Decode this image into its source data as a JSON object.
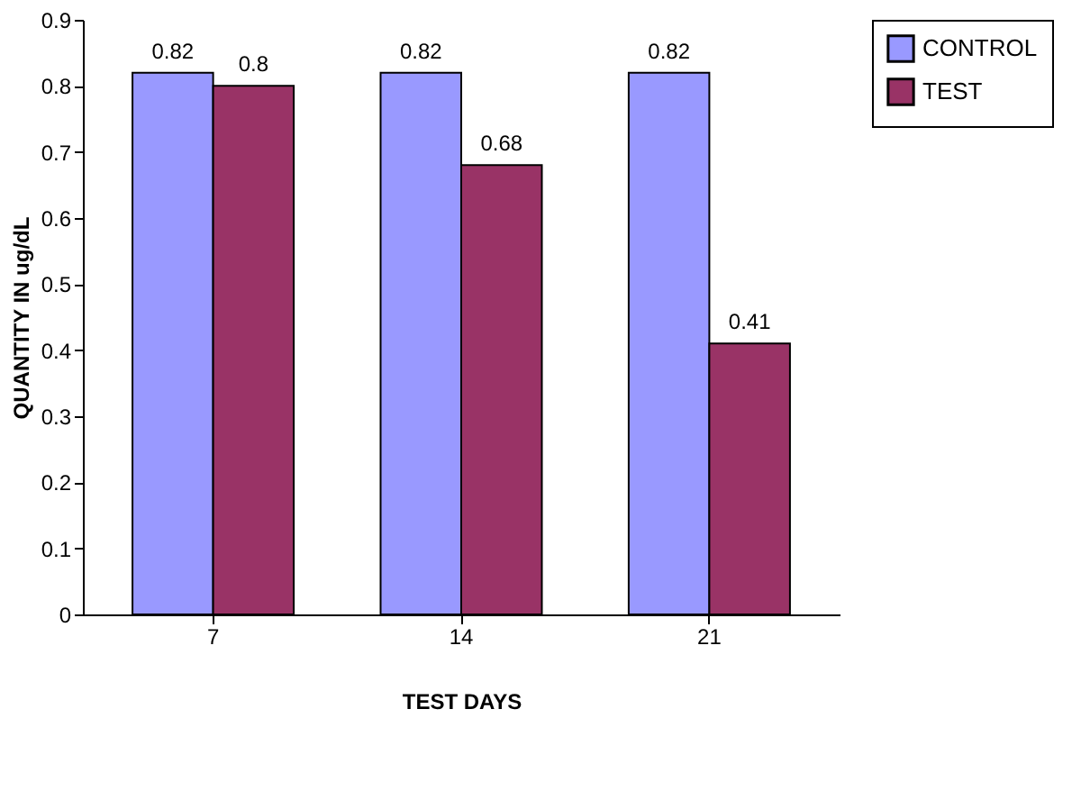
{
  "chart_data": {
    "type": "bar",
    "xlabel": "TEST DAYS",
    "ylabel": "QUANTITY IN ug/dL",
    "categories": [
      "7",
      "14",
      "21"
    ],
    "series": [
      {
        "name": "CONTROL",
        "color": "#9999ff",
        "values": [
          0.82,
          0.82,
          0.82
        ]
      },
      {
        "name": "TEST",
        "color": "#993366",
        "values": [
          0.8,
          0.68,
          0.41
        ]
      }
    ],
    "ylim": [
      0,
      0.9
    ],
    "yticks": [
      0,
      0.1,
      0.2,
      0.3,
      0.4,
      0.5,
      0.6,
      0.7,
      0.8,
      0.9
    ],
    "data_labels": true,
    "grid": false,
    "legend": "right"
  }
}
